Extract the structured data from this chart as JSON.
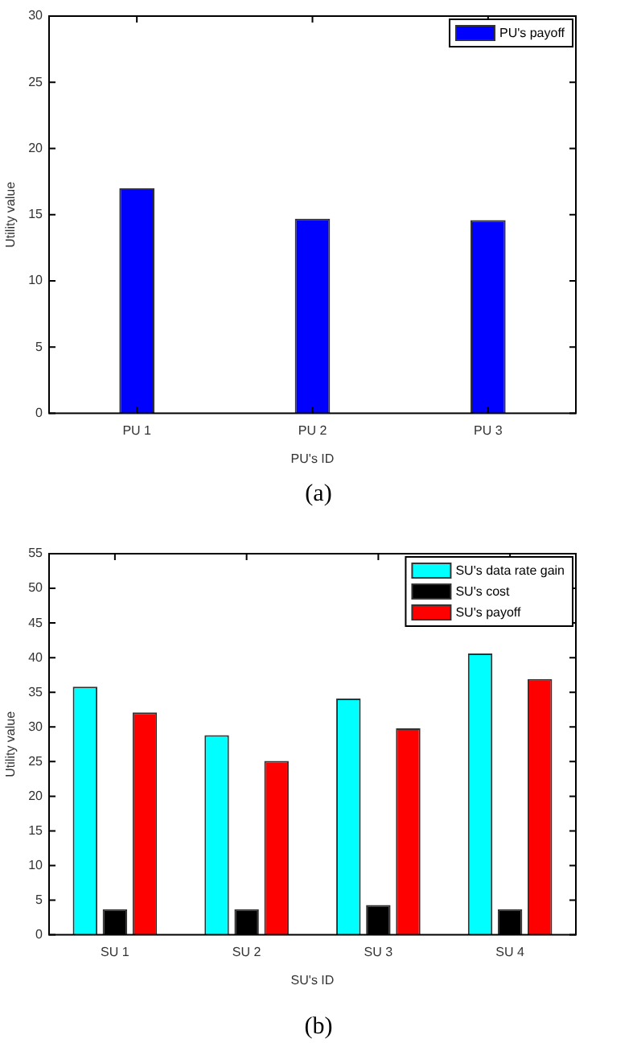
{
  "chart_data": [
    {
      "type": "bar",
      "xlabel": "PU's ID",
      "ylabel": "Utility value",
      "categories": [
        "PU 1",
        "PU 2",
        "PU 3"
      ],
      "series": [
        {
          "name": "PU's payoff",
          "color": "#0000ff",
          "values": [
            17,
            14.7,
            14.6
          ]
        }
      ],
      "ylim": [
        0,
        30
      ],
      "yticks": [
        0,
        5,
        10,
        15,
        20,
        25,
        30
      ],
      "grid": false,
      "legend": "top right",
      "annotations": [
        "(a)"
      ]
    },
    {
      "type": "bar",
      "xlabel": "SU's ID",
      "ylabel": "Utility value",
      "categories": [
        "SU 1",
        "SU 2",
        "SU 3",
        "SU 4"
      ],
      "series": [
        {
          "name": "SU's data rate gain",
          "color": "#00ffff",
          "values": [
            35.8,
            28.8,
            34.1,
            40.6
          ]
        },
        {
          "name": "SU's cost",
          "color": "#000000",
          "values": [
            3.7,
            3.7,
            4.3,
            3.7
          ]
        },
        {
          "name": "SU's payoff",
          "color": "#ff0000",
          "values": [
            32.1,
            25.1,
            29.8,
            36.9
          ]
        }
      ],
      "ylim": [
        0,
        55
      ],
      "yticks": [
        0,
        5,
        10,
        15,
        20,
        25,
        30,
        35,
        40,
        45,
        50,
        55
      ],
      "grid": false,
      "legend": "top right",
      "annotations": [
        "(b)"
      ]
    }
  ]
}
